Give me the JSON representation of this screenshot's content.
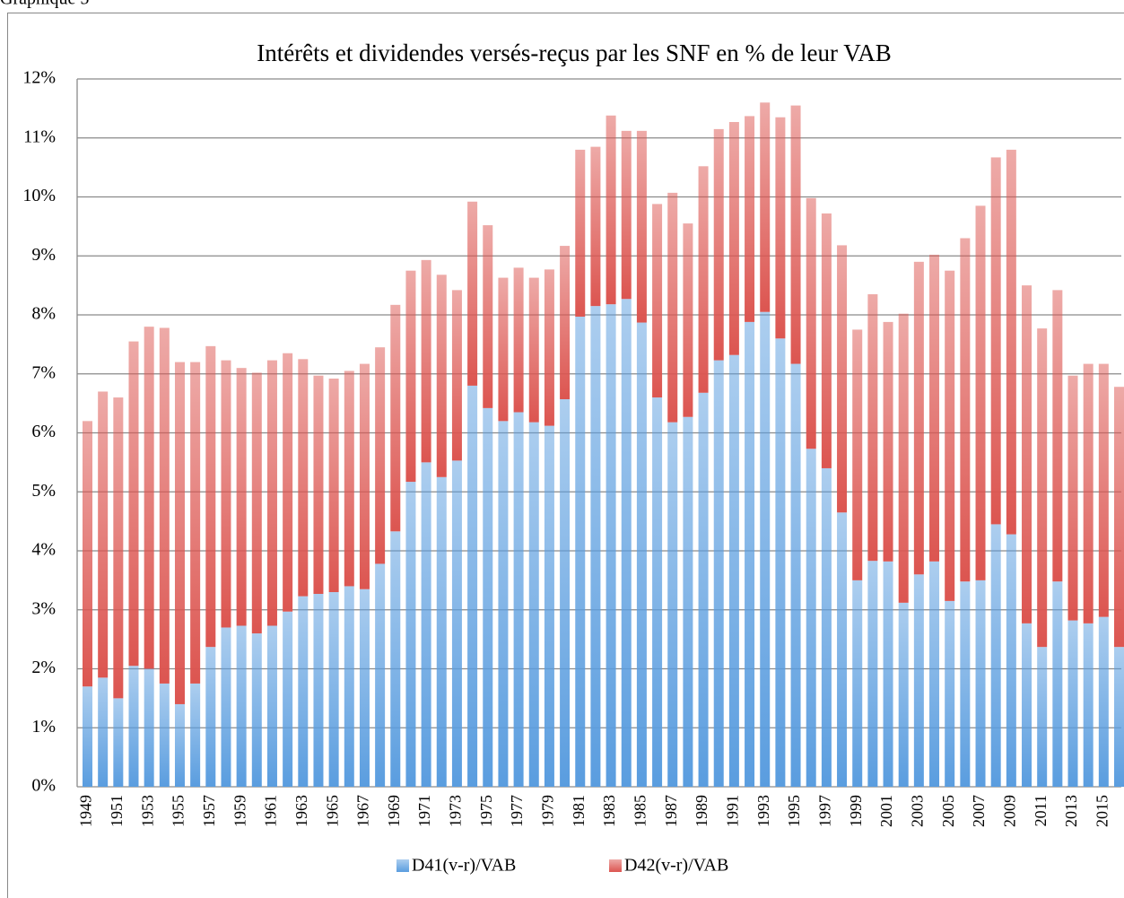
{
  "caption": "Graphique 5",
  "chart_data": {
    "type": "stacked-bar",
    "title": "Intérêts et dividendes versés-reçus par les SNF en % de leur VAB",
    "categories": [
      "1949",
      null,
      "1951",
      null,
      "1953",
      null,
      "1955",
      null,
      "1957",
      null,
      "1959",
      null,
      "1961",
      null,
      "1963",
      null,
      "1965",
      null,
      "1967",
      null,
      "1969",
      null,
      "1971",
      null,
      "1973",
      null,
      "1975",
      null,
      "1977",
      null,
      "1979",
      null,
      "1981",
      null,
      "1983",
      null,
      "1985",
      null,
      "1987",
      null,
      "1989",
      null,
      "1991",
      null,
      "1993",
      null,
      "1995",
      null,
      "1997",
      null,
      "1999",
      null,
      "2001",
      null,
      "2003",
      null,
      "2005",
      null,
      "2007",
      null,
      "2009",
      null,
      "2011",
      null,
      "2013",
      null,
      "2015",
      null
    ],
    "series": [
      {
        "name": "D41(v-r)/VAB",
        "color": "#5a9ddf",
        "values": [
          1.7,
          1.85,
          1.5,
          2.05,
          2.0,
          1.75,
          1.4,
          1.75,
          2.37,
          2.7,
          2.73,
          2.6,
          2.73,
          2.97,
          3.23,
          3.27,
          3.3,
          3.4,
          3.35,
          3.78,
          4.33,
          5.17,
          5.5,
          5.25,
          5.53,
          6.8,
          6.42,
          6.2,
          6.35,
          6.18,
          6.12,
          6.57,
          7.97,
          8.15,
          8.18,
          8.27,
          7.87,
          6.6,
          6.18,
          6.27,
          6.68,
          7.23,
          7.32,
          7.88,
          8.05,
          7.6,
          7.17,
          5.73,
          5.4,
          4.65,
          3.5,
          3.83,
          3.82,
          3.12,
          3.6,
          3.82,
          3.15,
          3.48,
          3.5,
          4.45,
          4.28,
          2.77,
          2.37,
          3.48,
          2.82,
          2.77,
          2.88,
          2.37
        ]
      },
      {
        "name": "D42(v-r)/VAB",
        "color": "#dc5550",
        "values": [
          4.5,
          4.85,
          5.1,
          5.5,
          5.8,
          6.03,
          5.8,
          5.45,
          5.1,
          4.53,
          4.37,
          4.42,
          4.5,
          4.38,
          4.02,
          3.7,
          3.62,
          3.65,
          3.82,
          3.67,
          3.84,
          3.58,
          3.43,
          3.43,
          2.89,
          3.12,
          3.1,
          2.43,
          2.45,
          2.45,
          2.65,
          2.6,
          2.83,
          2.7,
          3.2,
          2.85,
          3.25,
          3.28,
          3.89,
          3.28,
          3.84,
          3.92,
          3.95,
          3.49,
          3.55,
          3.75,
          4.38,
          4.25,
          4.32,
          4.53,
          4.25,
          4.52,
          4.06,
          4.9,
          5.3,
          5.2,
          5.6,
          5.82,
          6.35,
          6.22,
          6.52,
          5.73,
          5.4,
          4.94,
          4.15,
          4.4,
          4.29,
          4.41
        ]
      }
    ],
    "ylim": [
      0,
      12
    ],
    "yticks": [
      {
        "value": 0,
        "label": "0%"
      },
      {
        "value": 1,
        "label": "1%"
      },
      {
        "value": 2,
        "label": "2%"
      },
      {
        "value": 3,
        "label": "3%"
      },
      {
        "value": 4,
        "label": "4%"
      },
      {
        "value": 5,
        "label": "5%"
      },
      {
        "value": 6,
        "label": "6%"
      },
      {
        "value": 7,
        "label": "7%"
      },
      {
        "value": 8,
        "label": "8%"
      },
      {
        "value": 9,
        "label": "9%"
      },
      {
        "value": 10,
        "label": "10%"
      },
      {
        "value": 11,
        "label": "11%"
      },
      {
        "value": 12,
        "label": "12%"
      }
    ],
    "grid": true,
    "legend": "bottom"
  }
}
